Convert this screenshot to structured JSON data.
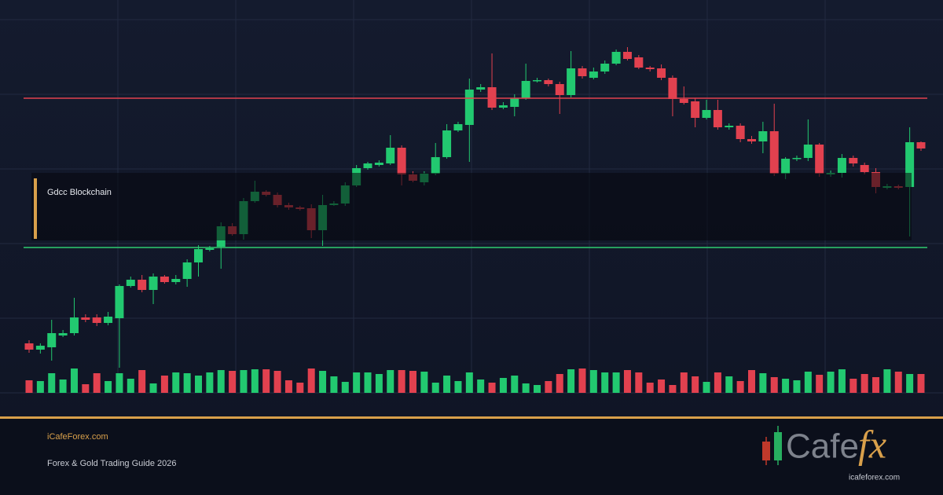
{
  "chart_data": {
    "type": "candlestick",
    "open": [
      63,
      55,
      58,
      73,
      76,
      96,
      96,
      89,
      95,
      136,
      144,
      131,
      148,
      141,
      145,
      166,
      182,
      186,
      212,
      202,
      244,
      256,
      252,
      239,
      236,
      235,
      207,
      239,
      241,
      264,
      286,
      290,
      292,
      312,
      278,
      268,
      279,
      300,
      334,
      341,
      386,
      389,
      363,
      364,
      375,
      397,
      398,
      393,
      379,
      413,
      401,
      409,
      419,
      434,
      427,
      414,
      413,
      401,
      374,
      371,
      350,
      360,
      338,
      340,
      323,
      320,
      333,
      279,
      298,
      299,
      316,
      278,
      280,
      299,
      290,
      281,
      261,
      263,
      262,
      319
    ],
    "close": [
      55,
      60,
      76,
      76,
      96,
      93,
      89,
      97,
      136,
      144,
      131,
      148,
      141,
      145,
      166,
      183,
      184,
      212,
      202,
      244,
      256,
      252,
      239,
      236,
      234,
      207,
      239,
      241,
      264,
      286,
      292,
      293,
      312,
      278,
      270,
      279,
      300,
      334,
      342,
      386,
      389,
      363,
      366,
      375,
      397,
      398,
      393,
      379,
      413,
      403,
      409,
      419,
      434,
      425,
      414,
      412,
      401,
      374,
      369,
      350,
      360,
      338,
      340,
      323,
      320,
      333,
      279,
      298,
      299,
      316,
      279,
      280,
      299,
      292,
      281,
      262,
      263,
      261,
      319,
      311
    ],
    "high": [
      67,
      63,
      93,
      80,
      121,
      100,
      100,
      103,
      138,
      148,
      150,
      152,
      150,
      150,
      170,
      188,
      187,
      217,
      216,
      248,
      270,
      258,
      255,
      242,
      238,
      240,
      252,
      244,
      268,
      290,
      294,
      296,
      328,
      315,
      282,
      282,
      318,
      342,
      345,
      400,
      393,
      432,
      370,
      380,
      419,
      401,
      400,
      396,
      435,
      416,
      414,
      423,
      437,
      440,
      430,
      416,
      418,
      404,
      390,
      375,
      373,
      373,
      343,
      343,
      327,
      345,
      368,
      300,
      302,
      348,
      318,
      283,
      304,
      302,
      293,
      286,
      266,
      265,
      338,
      320
    ],
    "low": [
      51,
      50,
      41,
      71,
      73,
      90,
      85,
      86,
      32,
      134,
      128,
      113,
      139,
      138,
      135,
      148,
      180,
      158,
      200,
      195,
      242,
      250,
      236,
      233,
      232,
      197,
      187,
      238,
      238,
      262,
      284,
      288,
      290,
      264,
      268,
      264,
      277,
      298,
      332,
      294,
      383,
      360,
      361,
      352,
      373,
      395,
      390,
      355,
      376,
      400,
      399,
      406,
      417,
      423,
      412,
      409,
      398,
      352,
      367,
      338,
      348,
      335,
      335,
      319,
      317,
      305,
      276,
      272,
      295,
      295,
      275,
      275,
      274,
      288,
      278,
      254,
      259,
      259,
      199,
      308
    ],
    "volume": [
      16,
      15,
      25,
      17,
      31,
      11,
      25,
      15,
      25,
      18,
      29,
      12,
      22,
      26,
      25,
      22,
      26,
      29,
      28,
      29,
      30,
      30,
      28,
      16,
      13,
      31,
      28,
      21,
      14,
      26,
      26,
      24,
      29,
      29,
      28,
      27,
      13,
      22,
      15,
      26,
      17,
      13,
      19,
      22,
      12,
      10,
      15,
      24,
      30,
      31,
      29,
      26,
      26,
      29,
      26,
      13,
      17,
      10,
      26,
      21,
      14,
      26,
      21,
      15,
      29,
      25,
      20,
      18,
      16,
      27,
      23,
      27,
      30,
      18,
      24,
      20,
      30,
      27,
      24,
      24
    ],
    "ylim": [
      0,
      475
    ],
    "up_color": "#22c970",
    "down_color": "#e2414f",
    "levels": [
      {
        "value": 375,
        "color": "#e2414f"
      },
      {
        "value": 185,
        "color": "#2ecc71"
      }
    ],
    "grid": true,
    "annotation": "Gdcc Blockchain"
  },
  "footer": {
    "site": "iCafeForex.com",
    "subtitle": "Forex & Gold Trading Guide 2026"
  },
  "logo": {
    "word": "Cafe",
    "fx": "fx",
    "url": "icafeforex.com"
  }
}
